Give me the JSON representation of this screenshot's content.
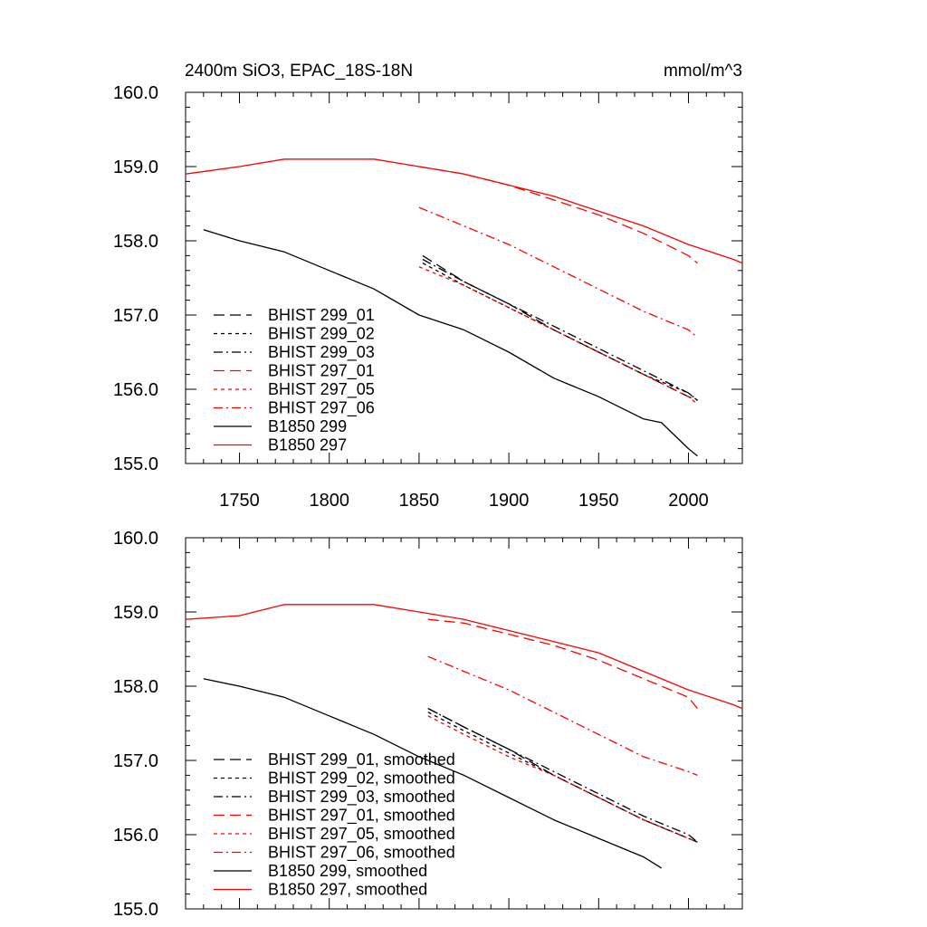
{
  "figure": {
    "title_left": "2400m SiO3, EPAC_18S-18N",
    "title_right": "mmol/m^3"
  },
  "chart_data": [
    {
      "type": "line",
      "title": "2400m SiO3, EPAC_18S-18N",
      "units": "mmol/m^3",
      "xlim": [
        1720,
        2030
      ],
      "ylim": [
        155.0,
        160.0
      ],
      "xticks": [
        1750,
        1800,
        1850,
        1900,
        1950,
        2000
      ],
      "yticks": [
        155.0,
        156.0,
        157.0,
        158.0,
        159.0,
        160.0
      ],
      "x_tick_labels": [
        "1750",
        "1800",
        "1850",
        "1900",
        "1950",
        "2000"
      ],
      "y_tick_labels": [
        "155.0",
        "156.0",
        "157.0",
        "158.0",
        "159.0",
        "160.0"
      ],
      "legend_position": "lower-left",
      "series": [
        {
          "name": "BHIST 299_01",
          "color": "#000000",
          "dash": "long-dash",
          "x": [
            1852,
            1875,
            1900,
            1925,
            1950,
            1975,
            2000,
            2005
          ],
          "y": [
            157.8,
            157.45,
            157.15,
            156.8,
            156.5,
            156.2,
            155.9,
            155.85
          ]
        },
        {
          "name": "BHIST 299_02",
          "color": "#000000",
          "dash": "dot",
          "x": [
            1852,
            1875,
            1900,
            1925,
            1950,
            1975,
            2000,
            2005
          ],
          "y": [
            157.7,
            157.4,
            157.1,
            156.8,
            156.5,
            156.2,
            155.95,
            155.85
          ]
        },
        {
          "name": "BHIST 299_03",
          "color": "#000000",
          "dash": "dash-dot",
          "x": [
            1852,
            1875,
            1900,
            1925,
            1950,
            1975,
            2000,
            2005
          ],
          "y": [
            157.75,
            157.45,
            157.15,
            156.85,
            156.55,
            156.25,
            155.95,
            155.85
          ]
        },
        {
          "name": "BHIST 297_01",
          "color": "#ff0000",
          "dash": "long-dash",
          "x": [
            1850,
            1875,
            1900,
            1925,
            1950,
            1975,
            2000,
            2005
          ],
          "y": [
            159.0,
            158.9,
            158.75,
            158.55,
            158.35,
            158.1,
            157.8,
            157.7
          ]
        },
        {
          "name": "BHIST 297_05",
          "color": "#ff0000",
          "dash": "dot",
          "x": [
            1850,
            1875,
            1900,
            1925,
            1950,
            1975,
            2000,
            2005
          ],
          "y": [
            157.65,
            157.4,
            157.1,
            156.8,
            156.5,
            156.2,
            155.9,
            155.8
          ]
        },
        {
          "name": "BHIST 297_06",
          "color": "#ff0000",
          "dash": "dash-dot",
          "x": [
            1850,
            1875,
            1900,
            1925,
            1950,
            1975,
            2000,
            2005
          ],
          "y": [
            158.45,
            158.2,
            157.95,
            157.65,
            157.35,
            157.05,
            156.8,
            156.7
          ]
        },
        {
          "name": "B1850 299",
          "color": "#000000",
          "dash": "solid",
          "x": [
            1730,
            1750,
            1775,
            1800,
            1825,
            1850,
            1875,
            1900,
            1925,
            1950,
            1975,
            1985,
            2000,
            2005
          ],
          "y": [
            158.15,
            158.0,
            157.85,
            157.6,
            157.35,
            157.0,
            156.8,
            156.5,
            156.15,
            155.9,
            155.6,
            155.55,
            155.2,
            155.1
          ]
        },
        {
          "name": "B1850 297",
          "color": "#ff0000",
          "dash": "solid",
          "x": [
            1720,
            1750,
            1775,
            1800,
            1825,
            1850,
            1875,
            1900,
            1925,
            1950,
            1975,
            2000,
            2025,
            2030
          ],
          "y": [
            158.9,
            159.0,
            159.1,
            159.1,
            159.1,
            159.0,
            158.9,
            158.75,
            158.6,
            158.4,
            158.2,
            157.95,
            157.75,
            157.7
          ]
        }
      ]
    },
    {
      "type": "line",
      "xlim": [
        1720,
        2030
      ],
      "ylim": [
        155.0,
        160.0
      ],
      "xticks": [
        1750,
        1800,
        1850,
        1900,
        1950,
        2000
      ],
      "yticks": [
        155.0,
        156.0,
        157.0,
        158.0,
        159.0,
        160.0
      ],
      "y_tick_labels": [
        "155.0",
        "156.0",
        "157.0",
        "158.0",
        "159.0",
        "160.0"
      ],
      "legend_position": "lower-left",
      "series": [
        {
          "name": "BHIST 299_01, smoothed",
          "color": "#000000",
          "dash": "long-dash",
          "x": [
            1855,
            1875,
            1900,
            1925,
            1950,
            1975,
            2000,
            2005
          ],
          "y": [
            157.7,
            157.45,
            157.15,
            156.8,
            156.5,
            156.2,
            155.95,
            155.9
          ]
        },
        {
          "name": "BHIST 299_02, smoothed",
          "color": "#000000",
          "dash": "dot",
          "x": [
            1855,
            1875,
            1900,
            1925,
            1950,
            1975,
            2000,
            2005
          ],
          "y": [
            157.65,
            157.4,
            157.1,
            156.8,
            156.5,
            156.2,
            155.95,
            155.9
          ]
        },
        {
          "name": "BHIST 299_03, smoothed",
          "color": "#000000",
          "dash": "dash-dot",
          "x": [
            1855,
            1875,
            1900,
            1925,
            1950,
            1975,
            2000,
            2005
          ],
          "y": [
            157.7,
            157.45,
            157.15,
            156.85,
            156.55,
            156.25,
            156.0,
            155.9
          ]
        },
        {
          "name": "BHIST 297_01, smoothed",
          "color": "#ff0000",
          "dash": "long-dash",
          "x": [
            1855,
            1875,
            1900,
            1925,
            1950,
            1975,
            2000,
            2005
          ],
          "y": [
            158.9,
            158.85,
            158.7,
            158.55,
            158.35,
            158.1,
            157.85,
            157.7
          ]
        },
        {
          "name": "BHIST 297_05, smoothed",
          "color": "#ff0000",
          "dash": "dot",
          "x": [
            1855,
            1875,
            1900,
            1925,
            1950,
            1975,
            2000,
            2005
          ],
          "y": [
            157.6,
            157.35,
            157.05,
            156.8,
            156.5,
            156.2,
            155.95,
            155.9
          ]
        },
        {
          "name": "BHIST 297_06, smoothed",
          "color": "#ff0000",
          "dash": "dash-dot",
          "x": [
            1855,
            1875,
            1900,
            1925,
            1950,
            1975,
            2000,
            2005
          ],
          "y": [
            158.4,
            158.2,
            157.95,
            157.65,
            157.35,
            157.05,
            156.85,
            156.8
          ]
        },
        {
          "name": "B1850 299, smoothed",
          "color": "#000000",
          "dash": "solid",
          "x": [
            1730,
            1750,
            1775,
            1800,
            1825,
            1850,
            1875,
            1900,
            1925,
            1950,
            1975,
            1985
          ],
          "y": [
            158.1,
            158.0,
            157.85,
            157.6,
            157.35,
            157.05,
            156.8,
            156.5,
            156.2,
            155.95,
            155.7,
            155.55
          ]
        },
        {
          "name": "B1850 297, smoothed",
          "color": "#ff0000",
          "dash": "solid",
          "x": [
            1720,
            1750,
            1775,
            1800,
            1825,
            1850,
            1875,
            1900,
            1925,
            1950,
            1975,
            2000,
            2025,
            2030
          ],
          "y": [
            158.9,
            158.95,
            159.1,
            159.1,
            159.1,
            159.0,
            158.9,
            158.75,
            158.6,
            158.45,
            158.2,
            157.95,
            157.75,
            157.7
          ]
        }
      ]
    }
  ]
}
